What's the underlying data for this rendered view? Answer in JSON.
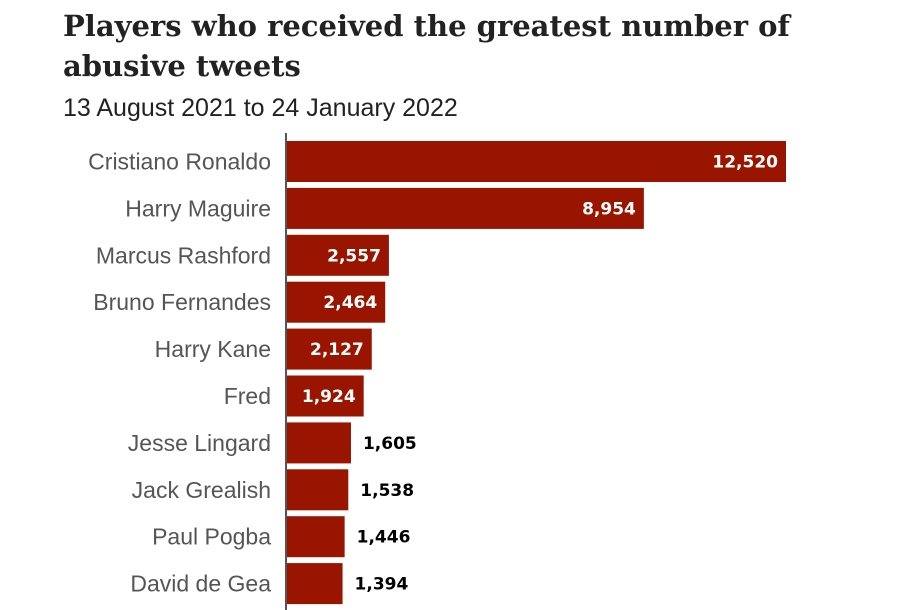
{
  "chart_data": {
    "type": "bar",
    "orientation": "horizontal",
    "title": "Players who received the greatest number of abusive tweets",
    "subtitle": "13 August 2021 to 24 January 2022",
    "categories": [
      "Cristiano Ronaldo",
      "Harry Maguire",
      "Marcus Rashford",
      "Bruno Fernandes",
      "Harry Kane",
      "Fred",
      "Jesse Lingard",
      "Jack Grealish",
      "Paul Pogba",
      "David de Gea"
    ],
    "values": [
      12520,
      8954,
      2557,
      2464,
      2127,
      1924,
      1605,
      1538,
      1446,
      1394
    ],
    "value_labels": [
      "12,520",
      "8,954",
      "2,557",
      "2,464",
      "2,127",
      "1,924",
      "1,605",
      "1,538",
      "1,446",
      "1,394"
    ],
    "xlim": [
      0,
      12520
    ],
    "grid": false,
    "legend": "none",
    "colors": {
      "bar": "#991500",
      "label_inside": "#ffffff",
      "label_outside": "#000000",
      "axis": "#555555"
    }
  }
}
